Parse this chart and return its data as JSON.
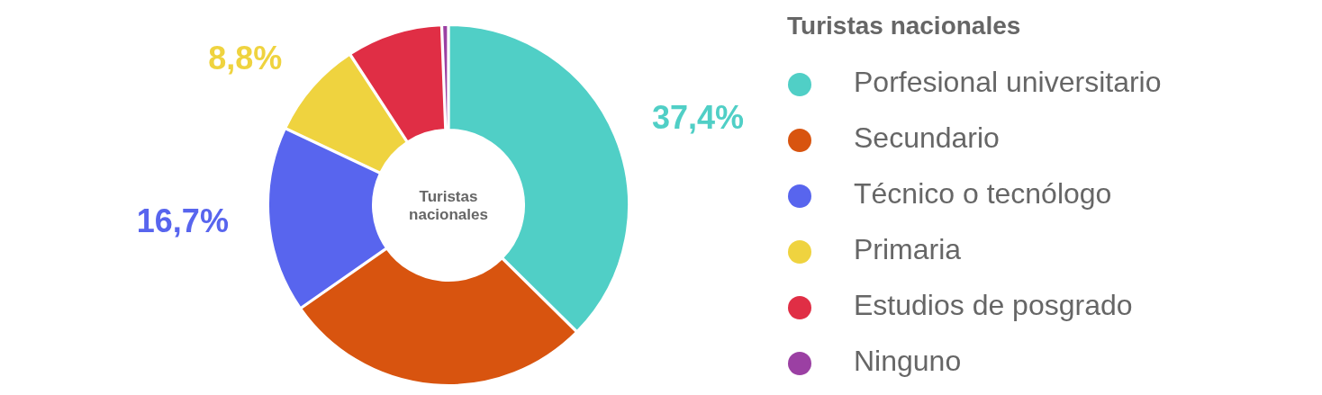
{
  "chart_data": {
    "type": "donut",
    "title": "Turistas nacionales",
    "legend_title": "Turistas nacionales",
    "categories": [
      "Porfesional universitario",
      "Secundario",
      "Técnico o tecnólogo",
      "Primaria",
      "Estudios de posgrado",
      "Ninguno"
    ],
    "values": [
      37.4,
      27.9,
      16.7,
      8.8,
      8.6,
      0.6
    ],
    "colors": [
      "#50cfc6",
      "#d8540f",
      "#5865ee",
      "#efd33f",
      "#e02e45",
      "#9b40a3"
    ],
    "value_labels": [
      "37,4%",
      null,
      "16,7%",
      "8,8%",
      null,
      null
    ],
    "legend": "right"
  }
}
